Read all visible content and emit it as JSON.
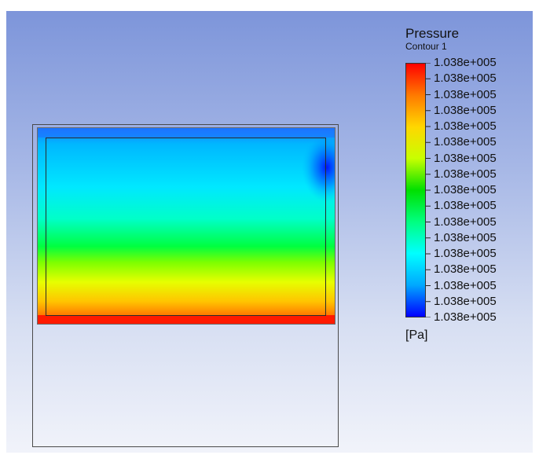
{
  "legend": {
    "title": "Pressure",
    "subtitle": "Contour 1",
    "unit": "[Pa]",
    "ticks": [
      "1.038e+005",
      "1.038e+005",
      "1.038e+005",
      "1.038e+005",
      "1.038e+005",
      "1.038e+005",
      "1.038e+005",
      "1.038e+005",
      "1.038e+005",
      "1.038e+005",
      "1.038e+005",
      "1.038e+005",
      "1.038e+005",
      "1.038e+005",
      "1.038e+005",
      "1.038e+005",
      "1.038e+005"
    ],
    "colormap": [
      "#ff0000",
      "#ff7a00",
      "#ffd700",
      "#c8ff00",
      "#00e000",
      "#00ff80",
      "#00ffff",
      "#00a8ff",
      "#0000ff"
    ]
  },
  "colors": {
    "background_top": "#7d95da",
    "background_bottom": "#f1f3fa",
    "outline": "#4a4a4a"
  }
}
